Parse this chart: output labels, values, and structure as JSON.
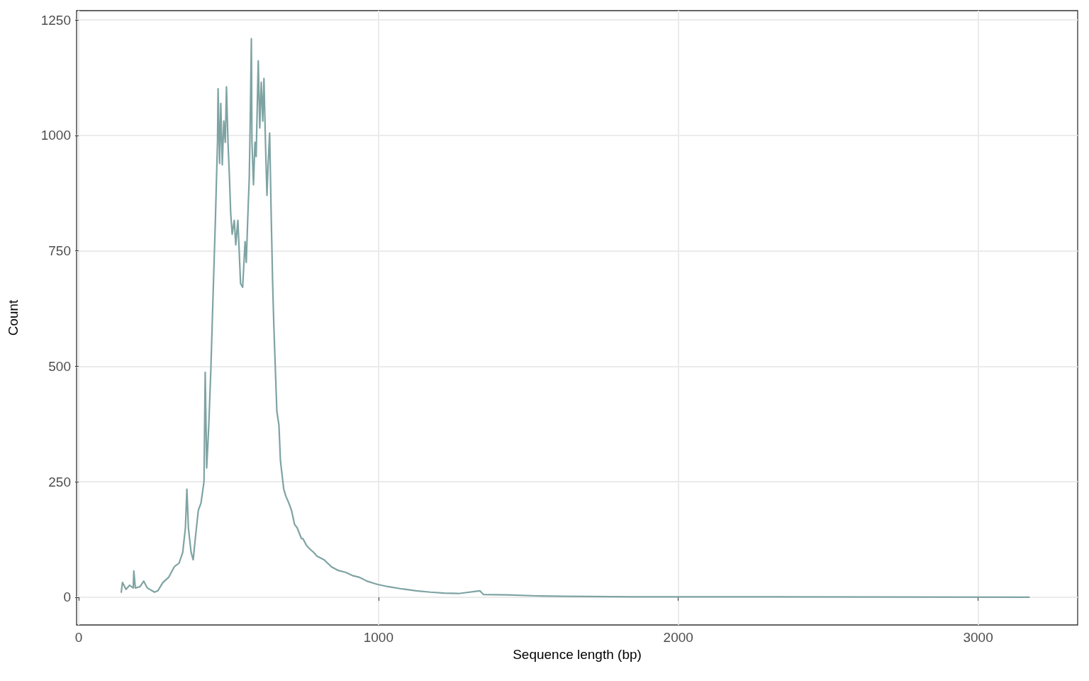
{
  "chart_data": {
    "type": "line",
    "xlabel": "Sequence length (bp)",
    "ylabel": "Count",
    "xlim": [
      -7,
      3332
    ],
    "xticks": [
      0,
      1000,
      2000,
      3000
    ],
    "ylim": [
      -60,
      1270
    ],
    "yticks": [
      0,
      250,
      500,
      750,
      1000,
      1250
    ],
    "grid": true,
    "marker": "none",
    "line_style": "solid",
    "series": [
      {
        "color": "#7fa3a3",
        "x": [
          142,
          146,
          158,
          170,
          182,
          184,
          189,
          205,
          217,
          229,
          253,
          264,
          281,
          300,
          319,
          335,
          347,
          356,
          361,
          366,
          375,
          382,
          389,
          399,
          408,
          418,
          422,
          427,
          434,
          441,
          448,
          456,
          463,
          465,
          470,
          474,
          479,
          484,
          489,
          493,
          498,
          503,
          507,
          512,
          519,
          524,
          531,
          536,
          540,
          547,
          555,
          559,
          564,
          569,
          573,
          576,
          578,
          583,
          588,
          592,
          599,
          604,
          609,
          614,
          618,
          623,
          628,
          632,
          637,
          642,
          647,
          651,
          656,
          661,
          668,
          673,
          677,
          684,
          691,
          701,
          710,
          720,
          729,
          743,
          748,
          760,
          772,
          784,
          795,
          819,
          843,
          866,
          890,
          913,
          937,
          961,
          996,
          1031,
          1079,
          1126,
          1173,
          1220,
          1267,
          1338,
          1350,
          1433,
          1527,
          1621,
          1857,
          2330,
          3170
        ],
        "values": [
          11,
          32,
          17,
          26,
          20,
          57,
          20,
          23,
          35,
          20,
          11,
          14,
          32,
          43,
          66,
          74,
          97,
          150,
          234,
          150,
          97,
          81,
          127,
          188,
          204,
          250,
          487,
          280,
          372,
          495,
          648,
          816,
          985,
          1101,
          939,
          1069,
          936,
          1031,
          985,
          1105,
          985,
          908,
          832,
          786,
          816,
          763,
          816,
          740,
          679,
          671,
          770,
          725,
          821,
          908,
          1062,
          1209,
          985,
          893,
          985,
          954,
          1161,
          1016,
          1115,
          1031,
          1123,
          985,
          870,
          939,
          1005,
          832,
          679,
          587,
          495,
          403,
          372,
          296,
          273,
          234,
          219,
          204,
          188,
          158,
          150,
          127,
          127,
          112,
          104,
          97,
          89,
          81,
          66,
          58,
          54,
          47,
          43,
          35,
          28,
          23,
          18,
          14,
          11,
          9,
          8,
          14,
          6,
          5,
          3,
          2,
          1,
          1,
          0
        ]
      }
    ]
  }
}
